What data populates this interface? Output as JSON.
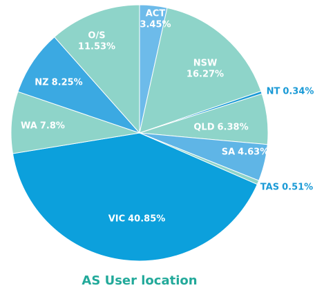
{
  "chart_data": {
    "type": "pie",
    "title": "AS User location",
    "categories": [
      "ACT",
      "NSW",
      "NT",
      "QLD",
      "SA",
      "TAS",
      "VIC",
      "WA",
      "NZ",
      "O/S"
    ],
    "values": [
      3.45,
      16.27,
      0.34,
      6.38,
      4.63,
      0.51,
      40.85,
      7.8,
      8.25,
      11.53
    ],
    "value_labels": [
      "3.45%",
      "16.27%",
      "0.34%",
      "6.38%",
      "4.63%",
      "0.51%",
      "40.85%",
      "7.8%",
      "8.25%",
      "11.53%"
    ],
    "colors": [
      "#6dbbea",
      "#8ed4c9",
      "#1a9ad6",
      "#8ed4c9",
      "#5fb5e6",
      "#8ed4c9",
      "#0ca0dc",
      "#8ed4c9",
      "#3ba9e2",
      "#8ed4c9"
    ]
  }
}
